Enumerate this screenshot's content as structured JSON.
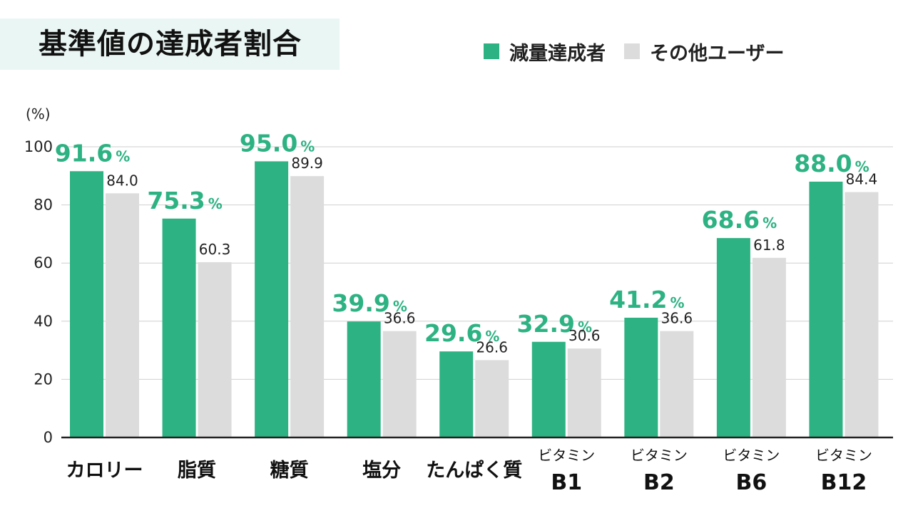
{
  "title": "基準値の達成者割合",
  "colors": {
    "primary": "#2db283",
    "secondary": "#dcdcdc",
    "grid": "#cfcfcf",
    "axis": "#222222"
  },
  "chart_data": {
    "type": "bar",
    "unit_label": "(%)",
    "ylim": [
      0,
      100
    ],
    "yticks": [
      0,
      20,
      40,
      60,
      80,
      100
    ],
    "grid": true,
    "legend_position": "top-right",
    "categories": [
      [
        "カロリー"
      ],
      [
        "脂質"
      ],
      [
        "糖質"
      ],
      [
        "塩分"
      ],
      [
        "たんぱく質"
      ],
      [
        "ビタミン",
        "B1"
      ],
      [
        "ビタミン",
        "B2"
      ],
      [
        "ビタミン",
        "B6"
      ],
      [
        "ビタミン",
        "B12"
      ]
    ],
    "series": [
      {
        "name": "減量達成者",
        "values": [
          91.6,
          75.3,
          95.0,
          39.9,
          29.6,
          32.9,
          41.2,
          68.6,
          88.0
        ],
        "value_labels": [
          "91.6",
          "75.3",
          "95.0",
          "39.9",
          "29.6",
          "32.9",
          "41.2",
          "68.6",
          "88.0"
        ],
        "label_suffix": "%"
      },
      {
        "name": "その他ユーザー",
        "values": [
          84.0,
          60.3,
          89.9,
          36.6,
          26.6,
          30.6,
          36.6,
          61.8,
          84.4
        ],
        "value_labels": [
          "84.0",
          "60.3",
          "89.9",
          "36.6",
          "26.6",
          "30.6",
          "36.6",
          "61.8",
          "84.4"
        ]
      }
    ]
  }
}
